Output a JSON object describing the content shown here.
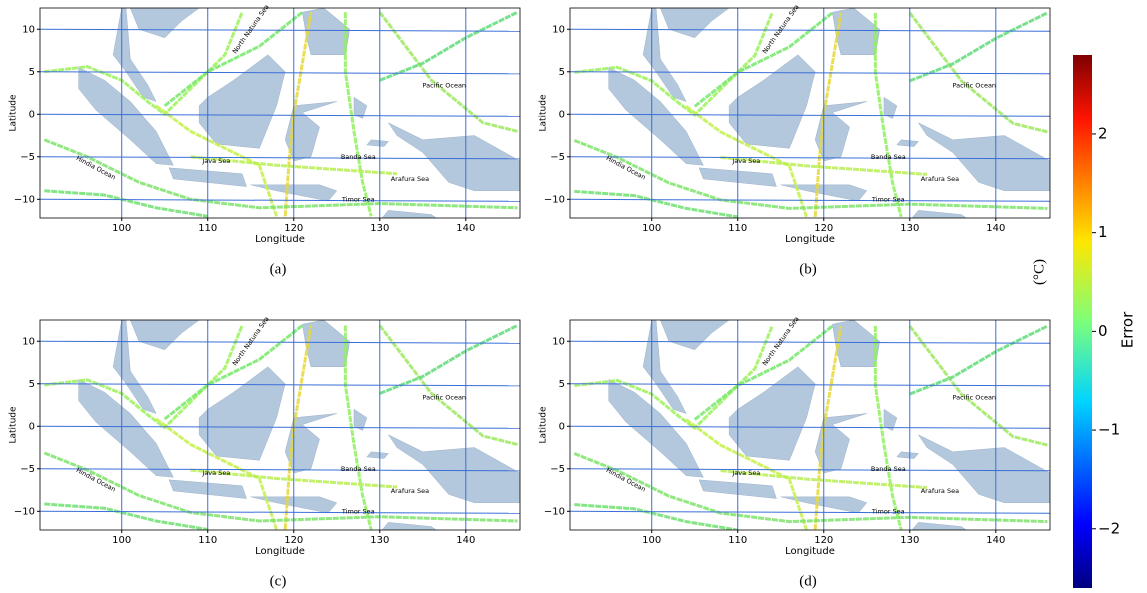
{
  "panels": [
    {
      "caption": "(a)",
      "xlabel": "Longitude",
      "ylabel": "Latitude",
      "xlim": [
        90.5,
        146.3
      ],
      "ylim": [
        -12.2,
        12.5
      ],
      "xticks": [
        100,
        110,
        120,
        130,
        140
      ],
      "yticks": [
        {
          "value": -10,
          "label": "−10"
        },
        {
          "value": -5,
          "label": "−5"
        },
        0,
        5,
        10
      ],
      "places": [
        "North Natuna Sea",
        "Pacific Ocean",
        "Java Sea",
        "Banda Sea",
        "Hindia Ocean",
        "Arafura Sea",
        "Timor Sea"
      ]
    },
    {
      "caption": "(b)",
      "xlabel": "Longitude",
      "ylabel": "Latitude",
      "xlim": [
        90.5,
        146.3
      ],
      "ylim": [
        -12.2,
        12.5
      ],
      "xticks": [
        100,
        110,
        120,
        130,
        140
      ],
      "yticks": [
        {
          "value": -10,
          "label": "−10"
        },
        {
          "value": -5,
          "label": "−5"
        },
        0,
        5,
        10
      ],
      "places": [
        "North Natuna Sea",
        "Pacific Ocean",
        "Java Sea",
        "Banda Sea",
        "Hindia Ocean",
        "Arafura Sea",
        "Timor Sea"
      ]
    },
    {
      "caption": "(c)",
      "xlabel": "Longitude",
      "ylabel": "Latitude",
      "xlim": [
        90.5,
        146.3
      ],
      "ylim": [
        -12.2,
        12.5
      ],
      "xticks": [
        100,
        110,
        120,
        130,
        140
      ],
      "yticks": [
        {
          "value": -10,
          "label": "−10"
        },
        {
          "value": -5,
          "label": "−5"
        },
        0,
        5,
        10
      ],
      "places": [
        "North Natuna Sea",
        "Pacific Ocean",
        "Java Sea",
        "Banda Sea",
        "Hindia Ocean",
        "Arafura Sea",
        "Timor Sea"
      ]
    },
    {
      "caption": "(d)",
      "xlabel": "Longitude",
      "ylabel": "Latitude",
      "xlim": [
        90.5,
        146.3
      ],
      "ylim": [
        -12.2,
        12.5
      ],
      "xticks": [
        100,
        110,
        120,
        130,
        140
      ],
      "yticks": [
        {
          "value": -10,
          "label": "−10"
        },
        {
          "value": -5,
          "label": "−5"
        },
        0,
        5,
        10
      ],
      "places": [
        "North Natuna Sea",
        "Pacific Ocean",
        "Java Sea",
        "Banda Sea",
        "Hindia Ocean",
        "Arafura Sea",
        "Timor Sea"
      ]
    }
  ],
  "colorbar": {
    "label": "Error",
    "unit": "(°C)",
    "lim": [
      -2.6,
      2.8
    ],
    "ticks": [
      {
        "value": -2,
        "label": "−2"
      },
      {
        "value": -1,
        "label": "−1"
      },
      0,
      1,
      2
    ]
  }
}
